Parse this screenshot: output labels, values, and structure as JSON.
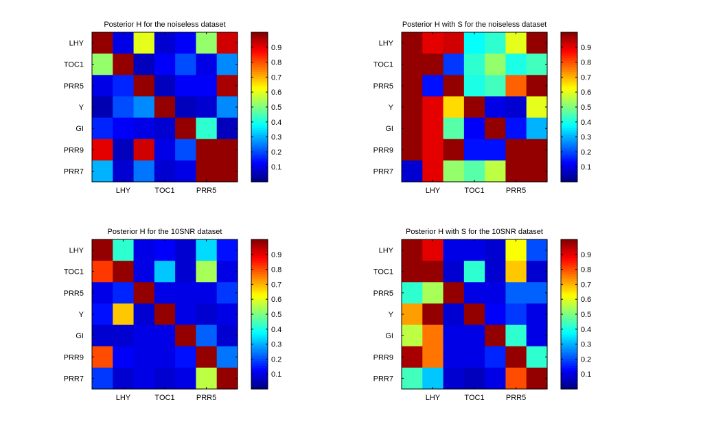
{
  "chart_data": [
    {
      "type": "heatmap",
      "title": "Posterior H for the noiseless dataset",
      "rows": [
        "LHY",
        "TOC1",
        "PRR5",
        "Y",
        "GI",
        "PRR9",
        "PRR7"
      ],
      "xticks": [
        "LHY",
        "TOC1",
        "PRR5"
      ],
      "values": [
        [
          0.98,
          0.1,
          0.6,
          0.08,
          0.12,
          0.52,
          0.92
        ],
        [
          0.52,
          0.98,
          0.06,
          0.12,
          0.2,
          0.1,
          0.26
        ],
        [
          0.1,
          0.16,
          0.98,
          0.06,
          0.12,
          0.12,
          0.96
        ],
        [
          0.05,
          0.2,
          0.26,
          0.98,
          0.06,
          0.08,
          0.26
        ],
        [
          0.16,
          0.12,
          0.1,
          0.08,
          0.98,
          0.42,
          0.06
        ],
        [
          0.9,
          0.06,
          0.92,
          0.1,
          0.2,
          0.98,
          0.98
        ],
        [
          0.3,
          0.08,
          0.24,
          0.08,
          0.1,
          0.98,
          0.98
        ]
      ],
      "clim": [
        0,
        1
      ],
      "colorbar_ticks": [
        0.1,
        0.2,
        0.3,
        0.4,
        0.5,
        0.6,
        0.7,
        0.8,
        0.9
      ],
      "colormap": "jet"
    },
    {
      "type": "heatmap",
      "title": "Posterior H with S for the noiseless dataset",
      "rows": [
        "LHY",
        "TOC1",
        "PRR5",
        "Y",
        "GI",
        "PRR9",
        "PRR7"
      ],
      "xticks": [
        "LHY",
        "TOC1",
        "PRR5"
      ],
      "values": [
        [
          0.98,
          0.9,
          0.92,
          0.38,
          0.42,
          0.6,
          0.98
        ],
        [
          0.98,
          0.98,
          0.18,
          0.42,
          0.52,
          0.4,
          0.44
        ],
        [
          0.98,
          0.14,
          0.98,
          0.4,
          0.44,
          0.78,
          0.98
        ],
        [
          0.98,
          0.9,
          0.66,
          0.98,
          0.1,
          0.08,
          0.6
        ],
        [
          0.98,
          0.9,
          0.46,
          0.12,
          0.98,
          0.14,
          0.3
        ],
        [
          0.98,
          0.9,
          0.98,
          0.14,
          0.14,
          0.98,
          0.98
        ],
        [
          0.08,
          0.9,
          0.52,
          0.46,
          0.56,
          0.98,
          0.98
        ]
      ],
      "clim": [
        0,
        1
      ],
      "colorbar_ticks": [
        0.1,
        0.2,
        0.3,
        0.4,
        0.5,
        0.6,
        0.7,
        0.8,
        0.9
      ],
      "colormap": "jet"
    },
    {
      "type": "heatmap",
      "title": "Posterior H for the 10SNR dataset",
      "rows": [
        "LHY",
        "TOC1",
        "PRR5",
        "Y",
        "GI",
        "PRR9",
        "PRR7"
      ],
      "xticks": [
        "LHY",
        "TOC1",
        "PRR5"
      ],
      "values": [
        [
          0.98,
          0.42,
          0.1,
          0.12,
          0.08,
          0.34,
          0.14
        ],
        [
          0.82,
          0.98,
          0.1,
          0.32,
          0.08,
          0.54,
          0.1
        ],
        [
          0.1,
          0.16,
          0.98,
          0.1,
          0.1,
          0.1,
          0.18
        ],
        [
          0.14,
          0.68,
          0.08,
          0.98,
          0.1,
          0.08,
          0.1
        ],
        [
          0.08,
          0.08,
          0.1,
          0.1,
          0.98,
          0.22,
          0.08
        ],
        [
          0.8,
          0.12,
          0.1,
          0.1,
          0.14,
          0.98,
          0.24
        ],
        [
          0.18,
          0.08,
          0.1,
          0.08,
          0.1,
          0.56,
          0.98
        ]
      ],
      "clim": [
        0,
        1
      ],
      "colorbar_ticks": [
        0.1,
        0.2,
        0.3,
        0.4,
        0.5,
        0.6,
        0.7,
        0.8,
        0.9
      ],
      "colormap": "jet"
    },
    {
      "type": "heatmap",
      "title": "Posterior H with S for the 10SNR dataset",
      "rows": [
        "LHY",
        "TOC1",
        "PRR5",
        "Y",
        "GI",
        "PRR9",
        "PRR7"
      ],
      "xticks": [
        "LHY",
        "TOC1",
        "PRR5"
      ],
      "values": [
        [
          0.98,
          0.9,
          0.1,
          0.1,
          0.08,
          0.62,
          0.2
        ],
        [
          0.98,
          0.98,
          0.08,
          0.42,
          0.08,
          0.68,
          0.08
        ],
        [
          0.42,
          0.54,
          0.98,
          0.1,
          0.1,
          0.22,
          0.22
        ],
        [
          0.72,
          0.98,
          0.08,
          0.98,
          0.12,
          0.18,
          0.1
        ],
        [
          0.56,
          0.76,
          0.1,
          0.1,
          0.98,
          0.42,
          0.1
        ],
        [
          0.96,
          0.76,
          0.1,
          0.1,
          0.16,
          0.98,
          0.42
        ],
        [
          0.44,
          0.32,
          0.08,
          0.06,
          0.1,
          0.8,
          0.98
        ]
      ],
      "clim": [
        0,
        1
      ],
      "colorbar_ticks": [
        0.1,
        0.2,
        0.3,
        0.4,
        0.5,
        0.6,
        0.7,
        0.8,
        0.9
      ],
      "colormap": "jet"
    }
  ]
}
